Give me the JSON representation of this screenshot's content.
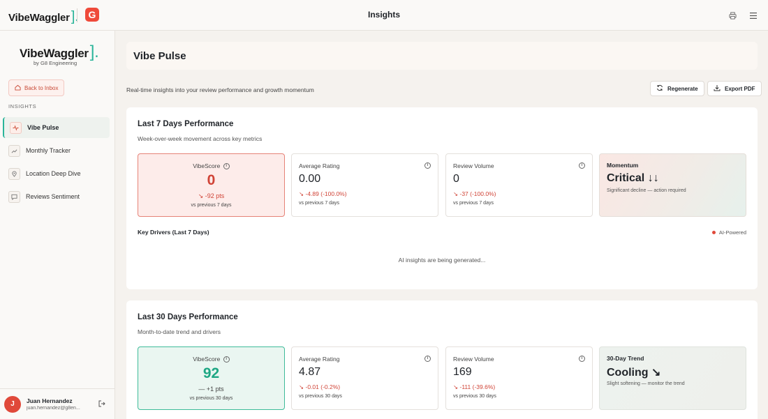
{
  "topbar": {
    "brand": "VibeWaggler",
    "brand_bracket": "].",
    "partner_logo": "G",
    "title": "Insights",
    "icons": {
      "printer": "printer-icon",
      "menu": "menu-icon"
    }
  },
  "sidebar": {
    "logo": "VibeWaggler",
    "logo_bracket": "].",
    "logo_sub": "by G8 Engineering",
    "back_label": "Back to Inbox",
    "section_label": "INSIGHTS",
    "items": [
      {
        "label": "Vibe Pulse",
        "icon": "pulse-icon",
        "active": true
      },
      {
        "label": "Monthly Tracker",
        "icon": "trend-icon",
        "active": false
      },
      {
        "label": "Location Deep Dive",
        "icon": "location-pin-icon",
        "active": false
      },
      {
        "label": "Reviews Sentiment",
        "icon": "chat-icon",
        "active": false
      }
    ],
    "user": {
      "initial": "J",
      "name": "Juan Hernandez",
      "email": "juan.hernandez@g8en..."
    }
  },
  "main": {
    "title": "Vibe Pulse",
    "subtitle": "Real-time insights into your review performance and growth momentum",
    "regenerate_label": "Regenerate",
    "export_label": "Export PDF"
  },
  "last7": {
    "title": "Last 7 Days Performance",
    "subtitle": "Week-over-week movement across key metrics",
    "vibescore": {
      "label": "VibeScore",
      "value": "0",
      "delta": "-92 pts",
      "caption": "vs previous 7 days"
    },
    "rating": {
      "label": "Average Rating",
      "value": "0.00",
      "delta": "-4.89 (-100.0%)",
      "caption": "vs previous 7 days"
    },
    "volume": {
      "label": "Review Volume",
      "value": "0",
      "delta": "-37 (-100.0%)",
      "caption": "vs previous 7 days"
    },
    "momentum": {
      "label": "Momentum",
      "value": "Critical ↓↓",
      "caption": "Significant decline — action required"
    },
    "drivers_title": "Key Drivers (Last 7 Days)",
    "ai_label": "AI-Powered",
    "ai_message": "AI insights are being generated..."
  },
  "last30": {
    "title": "Last 30 Days Performance",
    "subtitle": "Month-to-date trend and drivers",
    "vibescore": {
      "label": "VibeScore",
      "value": "92",
      "delta": "+1 pts",
      "caption": "vs previous 30 days"
    },
    "rating": {
      "label": "Average Rating",
      "value": "4.87",
      "delta": "-0.01 (-0.2%)",
      "caption": "vs previous 30 days"
    },
    "volume": {
      "label": "Review Volume",
      "value": "169",
      "delta": "-111 (-39.6%)",
      "caption": "vs previous 30 days"
    },
    "trend": {
      "label": "30-Day Trend",
      "value": "Cooling ↘",
      "caption": "Slight softening — monitor the trend"
    }
  },
  "colors": {
    "accent": "#2bb59a",
    "negative": "#d04336",
    "positive": "#1ea784",
    "brand_red": "#ef4a3a"
  }
}
